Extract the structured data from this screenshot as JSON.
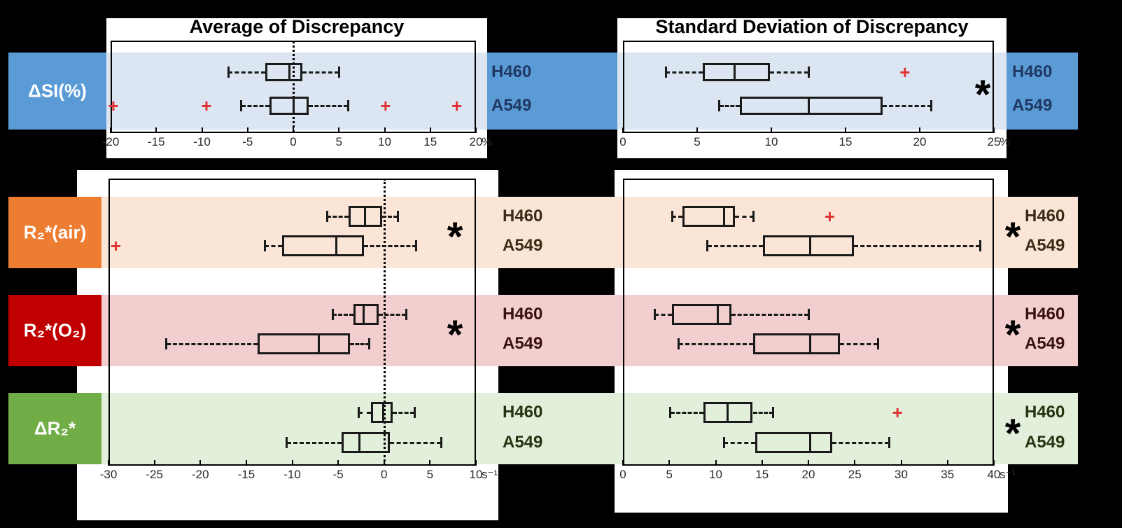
{
  "colors": {
    "background": "#000000",
    "panel": "#FFFFFF",
    "line": "#1A1A1A",
    "outlier": "#E03131",
    "tick_text": "#2A2A2A",
    "significance": "#000000"
  },
  "titles": {
    "left": "Average of Discrepancy",
    "right": "Standard Deviation of Discrepancy"
  },
  "rows": [
    {
      "label": "ΔSI(%)",
      "block_color": "#5B9BD5",
      "band_color": "#DCE6F2",
      "series_text_color": "#1F3864"
    },
    {
      "label": "R₂*(air)",
      "block_color": "#ED7D31",
      "band_color": "#FBE5D6",
      "series_text_color": "#3D2B15"
    },
    {
      "label": "R₂*(O₂)",
      "block_color": "#C00000",
      "band_color": "#F2CECE",
      "series_text_color": "#3A1010"
    },
    {
      "label": "ΔR₂*",
      "block_color": "#70AD47",
      "band_color": "#E2EFDA",
      "series_text_color": "#26330F"
    }
  ],
  "chart_data": [
    {
      "id": "avg_dsi",
      "type": "boxplot",
      "orientation": "horizontal",
      "title": "Average of Discrepancy",
      "unit": "%",
      "x_range": [
        -20,
        20
      ],
      "x_ticks": [
        -20,
        -15,
        -10,
        -5,
        0,
        5,
        10,
        15,
        20
      ],
      "zero_line": true,
      "rows": [
        {
          "group": "ΔSI(%)",
          "series": "H460",
          "whisker_low": -7.1,
          "q1": -3.1,
          "median": -0.4,
          "q3": 1.0,
          "whisker_high": 5.0,
          "outliers": []
        },
        {
          "group": "ΔSI(%)",
          "series": "A549",
          "whisker_low": -5.7,
          "q1": -2.6,
          "median": 0.0,
          "q3": 1.7,
          "whisker_high": 6.0,
          "outliers": [
            -19.7,
            -9.5,
            10.1,
            17.9
          ]
        }
      ],
      "significance": []
    },
    {
      "id": "sd_dsi",
      "type": "boxplot",
      "orientation": "horizontal",
      "title": "Standard Deviation of Discrepancy",
      "unit": "%",
      "x_range": [
        0,
        25
      ],
      "x_ticks": [
        0,
        5,
        10,
        15,
        20,
        25
      ],
      "zero_line": false,
      "rows": [
        {
          "group": "ΔSI(%)",
          "series": "H460",
          "whisker_low": 2.9,
          "q1": 5.4,
          "median": 7.5,
          "q3": 9.9,
          "whisker_high": 12.5,
          "outliers": [
            19.0
          ]
        },
        {
          "group": "ΔSI(%)",
          "series": "A549",
          "whisker_low": 6.5,
          "q1": 7.9,
          "median": 12.5,
          "q3": 17.5,
          "whisker_high": 20.8,
          "outliers": []
        }
      ],
      "significance": [
        "ΔSI(%)"
      ]
    },
    {
      "id": "avg_r2",
      "type": "boxplot",
      "orientation": "horizontal",
      "title": "Average of Discrepancy",
      "unit": "s⁻¹",
      "x_range": [
        -30,
        10
      ],
      "x_ticks": [
        -30,
        -25,
        -20,
        -15,
        -10,
        -5,
        0,
        5,
        10
      ],
      "zero_line": true,
      "rows": [
        {
          "group": "R₂*(air)",
          "series": "H460",
          "whisker_low": -6.2,
          "q1": -3.9,
          "median": -2.1,
          "q3": -0.2,
          "whisker_high": 1.5,
          "outliers": []
        },
        {
          "group": "R₂*(air)",
          "series": "A549",
          "whisker_low": -13.0,
          "q1": -11.1,
          "median": -5.2,
          "q3": -2.2,
          "whisker_high": 3.5,
          "outliers": [
            -29.2
          ]
        },
        {
          "group": "R₂*(O₂)",
          "series": "H460",
          "whisker_low": -5.6,
          "q1": -3.3,
          "median": -2.2,
          "q3": -0.6,
          "whisker_high": 2.4,
          "outliers": []
        },
        {
          "group": "R₂*(O₂)",
          "series": "A549",
          "whisker_low": -23.7,
          "q1": -13.8,
          "median": -7.1,
          "q3": -3.7,
          "whisker_high": -1.6,
          "outliers": []
        },
        {
          "group": "ΔR₂*",
          "series": "H460",
          "whisker_low": -2.8,
          "q1": -1.4,
          "median": -0.1,
          "q3": 0.9,
          "whisker_high": 3.3,
          "outliers": []
        },
        {
          "group": "ΔR₂*",
          "series": "A549",
          "whisker_low": -10.6,
          "q1": -4.6,
          "median": -2.7,
          "q3": 0.6,
          "whisker_high": 6.2,
          "outliers": []
        }
      ],
      "significance": [
        "R₂*(air)",
        "R₂*(O₂)"
      ]
    },
    {
      "id": "sd_r2",
      "type": "boxplot",
      "orientation": "horizontal",
      "title": "Standard Deviation of Discrepancy",
      "unit": "s⁻¹",
      "x_range": [
        0,
        40
      ],
      "x_ticks": [
        0,
        5,
        10,
        15,
        20,
        25,
        30,
        35,
        40
      ],
      "zero_line": false,
      "rows": [
        {
          "group": "R₂*(air)",
          "series": "H460",
          "whisker_low": 5.3,
          "q1": 6.4,
          "median": 10.9,
          "q3": 12.1,
          "whisker_high": 14.1,
          "outliers": [
            22.3
          ]
        },
        {
          "group": "R₂*(air)",
          "series": "A549",
          "whisker_low": 9.1,
          "q1": 15.1,
          "median": 20.2,
          "q3": 24.9,
          "whisker_high": 38.5,
          "outliers": []
        },
        {
          "group": "R₂*(O₂)",
          "series": "H460",
          "whisker_low": 3.4,
          "q1": 5.3,
          "median": 10.2,
          "q3": 11.7,
          "whisker_high": 20.0,
          "outliers": []
        },
        {
          "group": "R₂*(O₂)",
          "series": "A549",
          "whisker_low": 6.0,
          "q1": 14.0,
          "median": 20.2,
          "q3": 23.4,
          "whisker_high": 27.5,
          "outliers": []
        },
        {
          "group": "ΔR₂*",
          "series": "H460",
          "whisker_low": 5.1,
          "q1": 8.7,
          "median": 11.3,
          "q3": 14.0,
          "whisker_high": 16.2,
          "outliers": [
            29.6
          ]
        },
        {
          "group": "ΔR₂*",
          "series": "A549",
          "whisker_low": 10.9,
          "q1": 14.3,
          "median": 20.2,
          "q3": 22.6,
          "whisker_high": 28.7,
          "outliers": []
        }
      ],
      "significance": [
        "R₂*(air)",
        "R₂*(O₂)",
        "ΔR₂*"
      ]
    }
  ]
}
